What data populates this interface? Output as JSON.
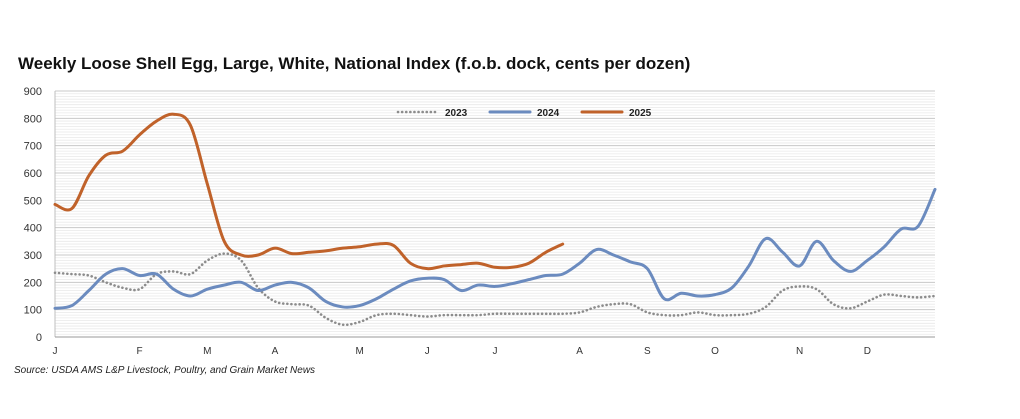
{
  "chart_data": {
    "type": "line",
    "title": "Weekly Loose Shell Egg, Large, White, National Index (f.o.b. dock, cents per dozen)",
    "source": "Source: USDA AMS L&P Livestock, Poultry, and Grain Market News",
    "ylim": [
      0,
      900
    ],
    "yticks": [
      0,
      100,
      200,
      300,
      400,
      500,
      600,
      700,
      800,
      900
    ],
    "xlim": [
      1,
      53
    ],
    "month_labels": [
      {
        "label": "J",
        "week": 1
      },
      {
        "label": "F",
        "week": 6
      },
      {
        "label": "M",
        "week": 10
      },
      {
        "label": "A",
        "week": 14
      },
      {
        "label": "M",
        "week": 19
      },
      {
        "label": "J",
        "week": 23
      },
      {
        "label": "J",
        "week": 27
      },
      {
        "label": "A",
        "week": 32
      },
      {
        "label": "S",
        "week": 36
      },
      {
        "label": "O",
        "week": 40
      },
      {
        "label": "N",
        "week": 45
      },
      {
        "label": "D",
        "week": 49
      }
    ],
    "grid": true,
    "legend_position": "top-center",
    "series": [
      {
        "name": "2023",
        "color": "#8c8c8c",
        "style": "dotted",
        "x": [
          1,
          2,
          3,
          4,
          5,
          6,
          7,
          8,
          9,
          10,
          11,
          12,
          13,
          14,
          15,
          16,
          17,
          18,
          19,
          20,
          21,
          22,
          23,
          24,
          25,
          26,
          27,
          28,
          29,
          30,
          31,
          32,
          33,
          34,
          35,
          36,
          37,
          38,
          39,
          40,
          41,
          42,
          43,
          44,
          45,
          46,
          47,
          48,
          49,
          50,
          51,
          52,
          53
        ],
        "y": [
          235,
          230,
          225,
          200,
          180,
          175,
          230,
          240,
          230,
          280,
          305,
          280,
          180,
          130,
          120,
          115,
          70,
          45,
          55,
          80,
          85,
          80,
          75,
          80,
          80,
          80,
          85,
          85,
          85,
          85,
          85,
          90,
          110,
          120,
          120,
          90,
          80,
          80,
          90,
          80,
          80,
          85,
          110,
          170,
          185,
          175,
          120,
          105,
          130,
          155,
          150,
          145,
          150
        ]
      },
      {
        "name": "2024",
        "color": "#6b8bbf",
        "style": "solid",
        "x": [
          1,
          2,
          3,
          4,
          5,
          6,
          7,
          8,
          9,
          10,
          11,
          12,
          13,
          14,
          15,
          16,
          17,
          18,
          19,
          20,
          21,
          22,
          23,
          24,
          25,
          26,
          27,
          28,
          29,
          30,
          31,
          32,
          33,
          34,
          35,
          36,
          37,
          38,
          39,
          40,
          41,
          42,
          43,
          44,
          45,
          46,
          47,
          48,
          49,
          50,
          51,
          52,
          53
        ],
        "y": [
          105,
          115,
          170,
          230,
          250,
          225,
          230,
          175,
          150,
          175,
          190,
          200,
          170,
          190,
          200,
          180,
          130,
          110,
          115,
          140,
          175,
          205,
          215,
          210,
          170,
          190,
          185,
          195,
          210,
          225,
          230,
          270,
          320,
          300,
          275,
          250,
          140,
          160,
          150,
          155,
          180,
          260,
          360,
          310,
          260,
          350,
          280,
          240,
          280,
          330,
          395,
          405,
          540
        ]
      },
      {
        "name": "2025",
        "color": "#c0622a",
        "style": "solid",
        "x": [
          1,
          2,
          3,
          4,
          5,
          6,
          7,
          8,
          9,
          10,
          11,
          12,
          13,
          14,
          15,
          16,
          17,
          18,
          19,
          20,
          21,
          22,
          23,
          24,
          25,
          26,
          27,
          28,
          29,
          30,
          31
        ],
        "y": [
          485,
          470,
          590,
          665,
          680,
          740,
          790,
          815,
          775,
          560,
          350,
          300,
          300,
          325,
          305,
          310,
          315,
          325,
          330,
          340,
          335,
          270,
          250,
          260,
          265,
          270,
          255,
          255,
          270,
          310,
          340
        ]
      }
    ]
  }
}
